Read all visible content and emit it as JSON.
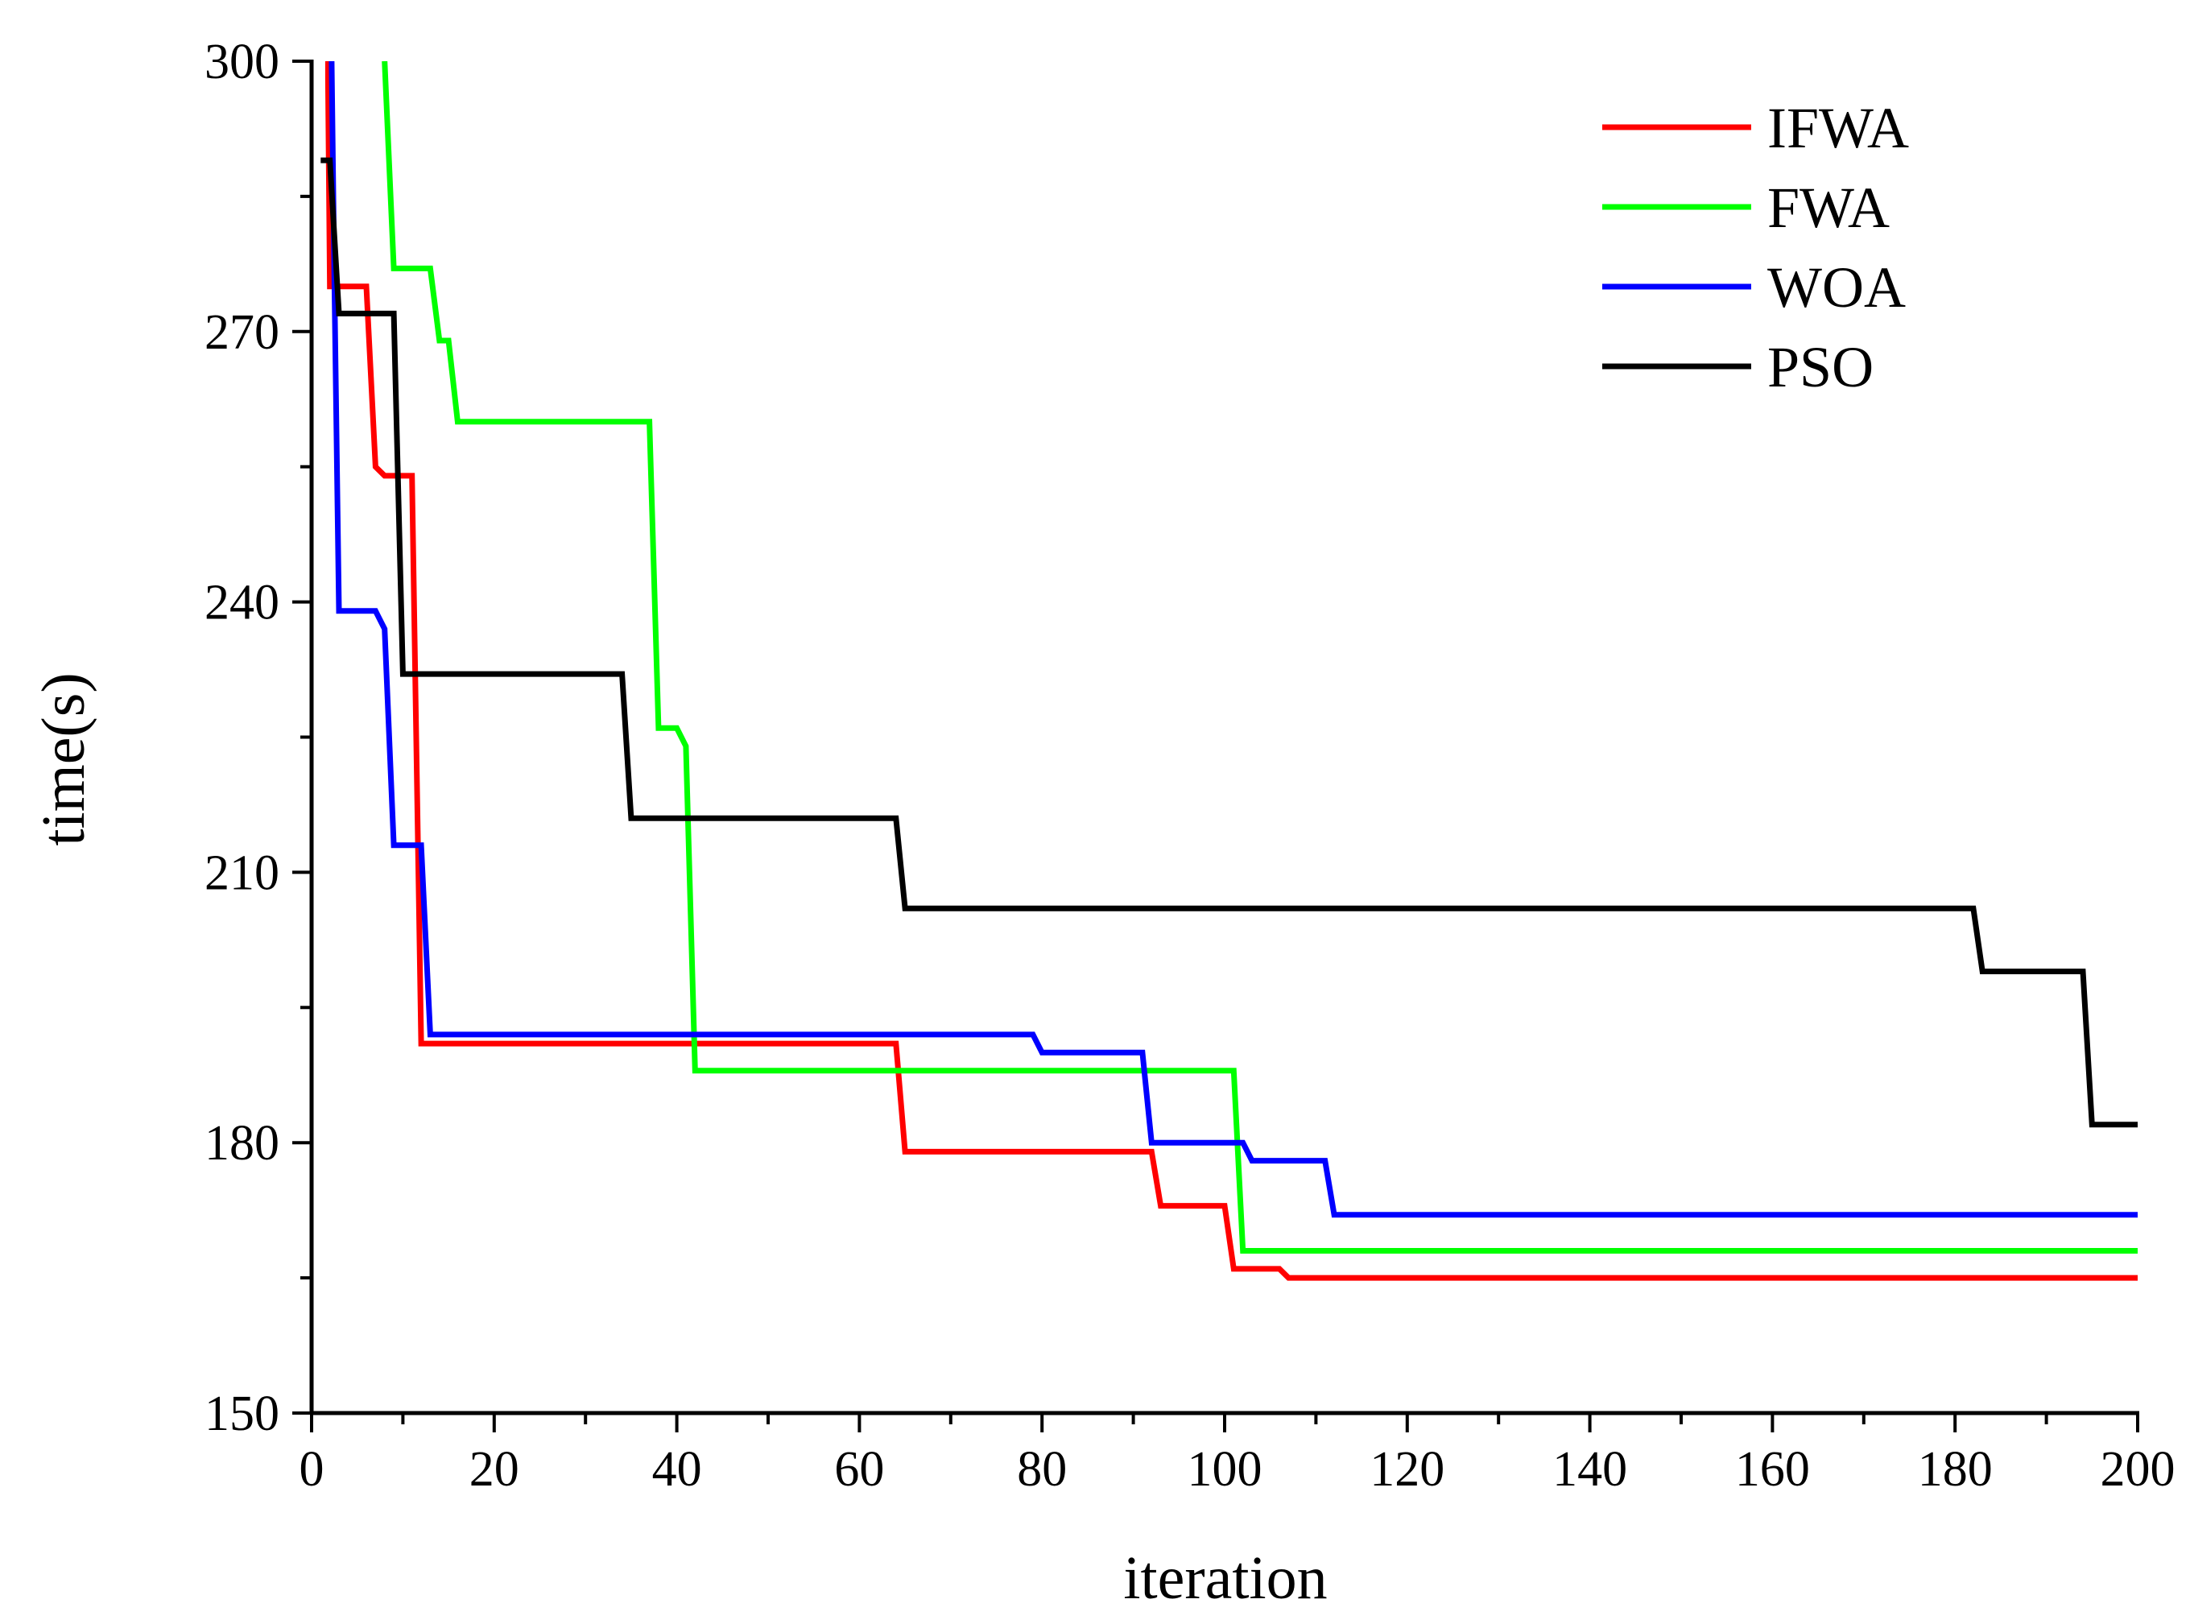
{
  "chart_data": {
    "type": "line",
    "title": "",
    "xlabel": "iteration",
    "ylabel": "time(s)",
    "xlim": [
      0,
      200
    ],
    "ylim": [
      150,
      300
    ],
    "xticks": [
      0,
      20,
      40,
      60,
      80,
      100,
      120,
      140,
      160,
      180,
      200
    ],
    "yticks": [
      150,
      180,
      210,
      240,
      270,
      300
    ],
    "grid": false,
    "legend_position": "top-right",
    "series": [
      {
        "name": "IFWA",
        "color": "#ff0000",
        "points": [
          [
            1.8,
            300
          ],
          [
            1.8,
            298
          ],
          [
            2.0,
            275
          ],
          [
            6.0,
            275
          ],
          [
            7.0,
            255
          ],
          [
            8.0,
            254
          ],
          [
            11.0,
            254
          ],
          [
            12.0,
            191
          ],
          [
            64.0,
            191
          ],
          [
            65.0,
            179
          ],
          [
            92.0,
            179
          ],
          [
            93.0,
            173
          ],
          [
            100.0,
            173
          ],
          [
            101.0,
            166
          ],
          [
            106.0,
            166
          ],
          [
            107.0,
            165
          ],
          [
            200,
            165
          ]
        ]
      },
      {
        "name": "FWA",
        "color": "#00ff00",
        "points": [
          [
            8.0,
            300
          ],
          [
            9.0,
            277
          ],
          [
            13.0,
            277
          ],
          [
            14.0,
            269
          ],
          [
            15.0,
            269
          ],
          [
            16.0,
            260
          ],
          [
            37.0,
            260
          ],
          [
            38.0,
            226
          ],
          [
            40.0,
            226
          ],
          [
            41.0,
            224
          ],
          [
            42.0,
            188
          ],
          [
            101.0,
            188
          ],
          [
            102.0,
            168
          ],
          [
            200,
            168
          ]
        ]
      },
      {
        "name": "WOA",
        "color": "#0000ff",
        "points": [
          [
            2.2,
            300
          ],
          [
            2.5,
            275
          ],
          [
            3.0,
            239
          ],
          [
            7.0,
            239
          ],
          [
            8.0,
            237
          ],
          [
            9.0,
            213
          ],
          [
            12.0,
            213
          ],
          [
            13.0,
            192
          ],
          [
            79.0,
            192
          ],
          [
            80.0,
            190
          ],
          [
            91.0,
            190
          ],
          [
            92.0,
            180
          ],
          [
            102.0,
            180
          ],
          [
            103.0,
            178
          ],
          [
            111.0,
            178
          ],
          [
            112.0,
            172
          ],
          [
            200,
            172
          ]
        ]
      },
      {
        "name": "PSO",
        "color": "#000000",
        "points": [
          [
            1.0,
            289
          ],
          [
            2.0,
            289
          ],
          [
            3.0,
            272
          ],
          [
            9.0,
            272
          ],
          [
            10.0,
            232
          ],
          [
            34.0,
            232
          ],
          [
            35.0,
            216
          ],
          [
            64.0,
            216
          ],
          [
            65.0,
            206
          ],
          [
            182.0,
            206
          ],
          [
            183.0,
            199
          ],
          [
            194.0,
            199
          ],
          [
            195.0,
            182
          ],
          [
            200,
            182
          ]
        ]
      }
    ]
  }
}
